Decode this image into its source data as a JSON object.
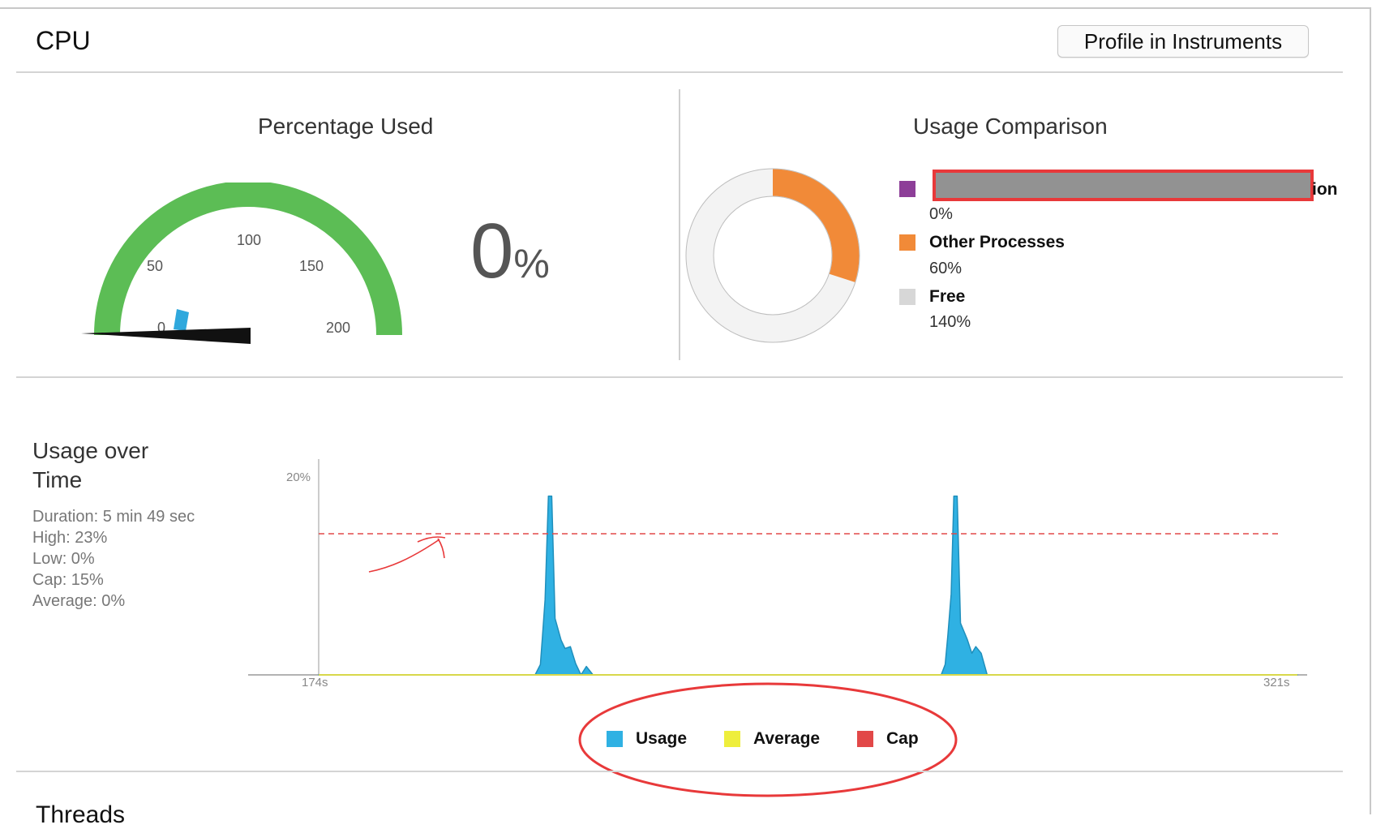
{
  "header": {
    "title": "CPU",
    "profile_button": "Profile in Instruments"
  },
  "gauge": {
    "title": "Percentage Used",
    "value": 0,
    "value_text": "0",
    "value_unit": "%",
    "max": 200,
    "ticks": [
      "0",
      "50",
      "100",
      "150",
      "200"
    ],
    "arc_color": "#5cbd55",
    "indicator_color": "#2fa8dd"
  },
  "comparison": {
    "title": "Usage Comparison",
    "items": [
      {
        "name": "",
        "name_tail": "ion",
        "value": "0%",
        "color": "#8d3e98",
        "redacted": true
      },
      {
        "name": "Other Processes",
        "value": "60%",
        "color": "#f18a38"
      },
      {
        "name": "Free",
        "value": "140%",
        "color": "#d7d7d7"
      }
    ],
    "donut": {
      "other_fraction": 0.3,
      "free_fraction": 0.7
    }
  },
  "usage_over_time": {
    "title_line1": "Usage over",
    "title_line2": "Time",
    "stats": {
      "duration": "Duration: 5 min 49 sec",
      "high": "High: 23%",
      "low": "Low: 0%",
      "cap": "Cap: 15%",
      "average": "Average: 0%"
    },
    "legend": [
      {
        "label": "Usage",
        "color": "#2fb1e3"
      },
      {
        "label": "Average",
        "color": "#eeee3c"
      },
      {
        "label": "Cap",
        "color": "#e24848"
      }
    ]
  },
  "chart_data": {
    "type": "area",
    "y_tick_label": "20%",
    "x_tick_labels": [
      "174s",
      "321s"
    ],
    "xlim": [
      174,
      321
    ],
    "ylim": [
      0,
      23
    ],
    "cap": 15,
    "average": 0,
    "series": [
      {
        "name": "Usage",
        "color": "#2fb1e3",
        "points": [
          [
            174,
            0
          ],
          [
            206.5,
            0
          ],
          [
            207.3,
            1.1
          ],
          [
            207.6,
            4.0
          ],
          [
            208,
            8.0
          ],
          [
            208.5,
            19
          ],
          [
            209,
            19
          ],
          [
            209.5,
            6.0
          ],
          [
            210.4,
            3.7
          ],
          [
            211,
            2.8
          ],
          [
            211.8,
            3.0
          ],
          [
            212.6,
            1.2
          ],
          [
            213.4,
            0
          ],
          [
            214.2,
            0.9
          ],
          [
            215.2,
            0
          ],
          [
            267.5,
            0
          ],
          [
            268.1,
            1.1
          ],
          [
            268.5,
            4.2
          ],
          [
            269,
            8.6
          ],
          [
            269.4,
            19
          ],
          [
            269.9,
            19
          ],
          [
            270.4,
            5.5
          ],
          [
            271.4,
            3.8
          ],
          [
            272.1,
            2.3
          ],
          [
            272.7,
            3.0
          ],
          [
            273.5,
            2.3
          ],
          [
            274.4,
            0
          ],
          [
            321,
            0
          ]
        ]
      }
    ]
  }
}
